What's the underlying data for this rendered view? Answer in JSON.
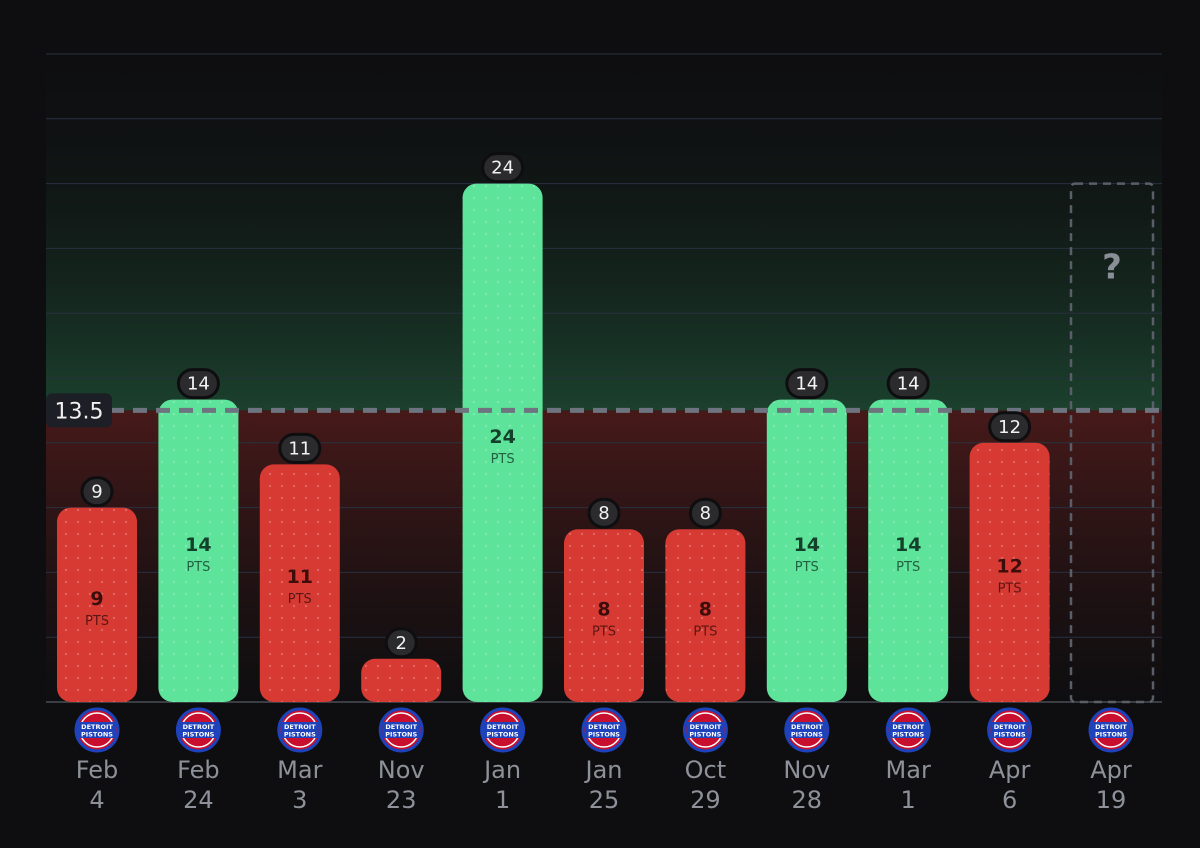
{
  "chart_data": {
    "type": "bar",
    "categories": [
      {
        "month": "Feb",
        "day": "4"
      },
      {
        "month": "Feb",
        "day": "24"
      },
      {
        "month": "Mar",
        "day": "3"
      },
      {
        "month": "Nov",
        "day": "23"
      },
      {
        "month": "Jan",
        "day": "1"
      },
      {
        "month": "Jan",
        "day": "25"
      },
      {
        "month": "Oct",
        "day": "29"
      },
      {
        "month": "Nov",
        "day": "28"
      },
      {
        "month": "Mar",
        "day": "1"
      },
      {
        "month": "Apr",
        "day": "6"
      },
      {
        "month": "Apr",
        "day": "19"
      }
    ],
    "values": [
      9,
      14,
      11,
      2,
      24,
      8,
      8,
      14,
      14,
      12,
      null
    ],
    "unit": "PTS",
    "threshold": 13.5,
    "threshold_label": "13.5",
    "upcoming_label": "?",
    "team_logo": "detroit-pistons-logo",
    "logo_text": [
      "DETROIT",
      "PISTONS"
    ],
    "ylim": [
      0,
      31
    ],
    "grid": true,
    "colors": {
      "over": "#5ee39a",
      "under": "#d63a33",
      "over_text": "#13402a",
      "under_text": "#3d0d0b",
      "pill": "#2b2b2e",
      "threshold_line": "#6d7480"
    }
  }
}
